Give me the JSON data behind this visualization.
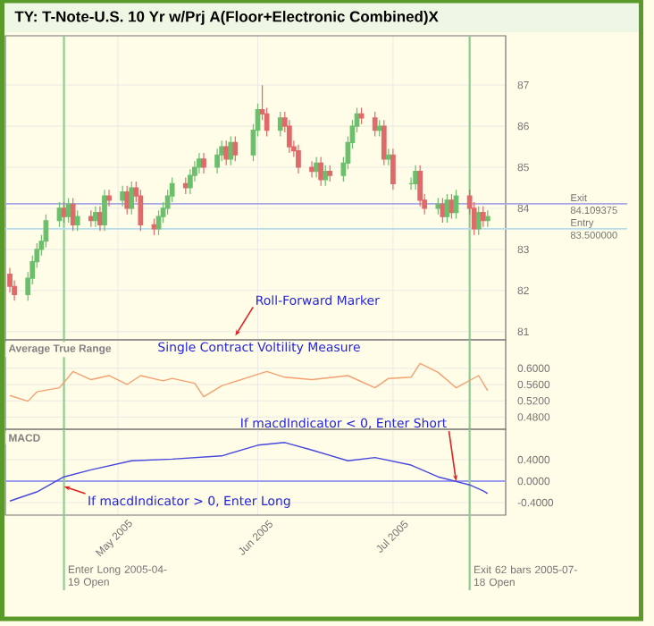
{
  "chart_data": [
    {
      "type": "candlestick",
      "title": "TY: T-Note-U.S. 10 Yr w/Prj A(Floor+Electronic Combined)X",
      "x": [
        "2005-04-07",
        "2005-04-08",
        "2005-04-11",
        "2005-04-12",
        "2005-04-13",
        "2005-04-14",
        "2005-04-15",
        "2005-04-18",
        "2005-04-19",
        "2005-04-20",
        "2005-04-21",
        "2005-04-22",
        "2005-04-25",
        "2005-04-26",
        "2005-04-27",
        "2005-04-28",
        "2005-04-29",
        "2005-05-02",
        "2005-05-03",
        "2005-05-04",
        "2005-05-05",
        "2005-05-06",
        "2005-05-09",
        "2005-05-10",
        "2005-05-11",
        "2005-05-12",
        "2005-05-13",
        "2005-05-16",
        "2005-05-17",
        "2005-05-18",
        "2005-05-19",
        "2005-05-20",
        "2005-05-23",
        "2005-05-24",
        "2005-05-25",
        "2005-05-26",
        "2005-05-27",
        "2005-05-31",
        "2005-06-01",
        "2005-06-02",
        "2005-06-03",
        "2005-06-06",
        "2005-06-07",
        "2005-06-08",
        "2005-06-09",
        "2005-06-10",
        "2005-06-13",
        "2005-06-14",
        "2005-06-15",
        "2005-06-16",
        "2005-06-17",
        "2005-06-20",
        "2005-06-21",
        "2005-06-22",
        "2005-06-23",
        "2005-06-24",
        "2005-06-27",
        "2005-06-28",
        "2005-06-29",
        "2005-06-30",
        "2005-07-01",
        "2005-07-05",
        "2005-07-06",
        "2005-07-07",
        "2005-07-08",
        "2005-07-11",
        "2005-07-12",
        "2005-07-13",
        "2005-07-14",
        "2005-07-15",
        "2005-07-18",
        "2005-07-19",
        "2005-07-20",
        "2005-07-21",
        "2005-07-22"
      ],
      "ohlc": [
        [
          82.4,
          82.55,
          81.95,
          82.1
        ],
        [
          82.1,
          82.25,
          81.75,
          81.9
        ],
        [
          81.9,
          82.45,
          81.75,
          82.3
        ],
        [
          82.3,
          82.85,
          82.15,
          82.7
        ],
        [
          82.7,
          83.15,
          82.55,
          83.0
        ],
        [
          83.0,
          83.35,
          82.85,
          83.2
        ],
        [
          83.2,
          83.85,
          83.05,
          83.7
        ],
        [
          83.7,
          84.15,
          83.55,
          84.0
        ],
        [
          84.0,
          84.15,
          83.65,
          83.8
        ],
        [
          83.8,
          84.25,
          83.65,
          84.1
        ],
        [
          84.1,
          84.25,
          83.45,
          83.6
        ],
        [
          83.6,
          83.95,
          83.45,
          83.8
        ],
        [
          83.8,
          83.95,
          83.55,
          83.7
        ],
        [
          83.7,
          84.05,
          83.55,
          83.9
        ],
        [
          83.9,
          84.05,
          83.45,
          83.6
        ],
        [
          83.6,
          84.45,
          83.45,
          84.3
        ],
        [
          84.3,
          84.45,
          84.05,
          84.2
        ],
        [
          84.2,
          84.55,
          84.05,
          84.4
        ],
        [
          84.4,
          84.55,
          83.85,
          84.0
        ],
        [
          84.0,
          84.65,
          83.85,
          84.5
        ],
        [
          84.5,
          84.65,
          84.15,
          84.3
        ],
        [
          84.3,
          84.45,
          83.45,
          83.6
        ],
        [
          83.6,
          83.75,
          83.35,
          83.5
        ],
        [
          83.5,
          83.95,
          83.35,
          83.8
        ],
        [
          83.8,
          84.15,
          83.65,
          84.0
        ],
        [
          84.0,
          84.45,
          83.85,
          84.3
        ],
        [
          84.3,
          84.75,
          84.15,
          84.6
        ],
        [
          84.6,
          84.75,
          84.35,
          84.5
        ],
        [
          84.5,
          84.95,
          84.35,
          84.8
        ],
        [
          84.8,
          85.15,
          84.65,
          85.0
        ],
        [
          85.0,
          85.35,
          84.85,
          85.2
        ],
        [
          85.2,
          85.35,
          84.85,
          85.0
        ],
        [
          85.0,
          85.45,
          84.85,
          85.3
        ],
        [
          85.3,
          85.65,
          85.15,
          85.5
        ],
        [
          85.5,
          85.65,
          85.05,
          85.2
        ],
        [
          85.2,
          85.75,
          85.05,
          85.6
        ],
        [
          85.6,
          85.75,
          85.15,
          85.3
        ],
        [
          85.3,
          86.05,
          85.15,
          85.9
        ],
        [
          85.9,
          86.55,
          85.75,
          86.4
        ],
        [
          86.4,
          87.0,
          86.15,
          86.3
        ],
        [
          86.3,
          86.45,
          85.75,
          85.9
        ],
        [
          85.9,
          86.35,
          85.75,
          86.2
        ],
        [
          86.2,
          86.35,
          85.85,
          86.0
        ],
        [
          86.0,
          86.15,
          85.35,
          85.5
        ],
        [
          85.5,
          85.65,
          85.25,
          85.4
        ],
        [
          85.4,
          85.55,
          84.85,
          85.0
        ],
        [
          85.0,
          85.15,
          84.75,
          84.9
        ],
        [
          84.9,
          85.25,
          84.75,
          85.1
        ],
        [
          85.1,
          85.25,
          84.55,
          84.7
        ],
        [
          84.7,
          85.05,
          84.55,
          84.9
        ],
        [
          84.9,
          85.05,
          84.65,
          84.8
        ],
        [
          84.8,
          85.25,
          84.65,
          85.1
        ],
        [
          85.1,
          85.75,
          84.95,
          85.6
        ],
        [
          85.6,
          86.15,
          85.45,
          86.0
        ],
        [
          86.0,
          86.45,
          85.85,
          86.3
        ],
        [
          86.3,
          86.45,
          86.05,
          86.2
        ],
        [
          86.2,
          86.35,
          85.75,
          85.9
        ],
        [
          85.9,
          86.15,
          85.75,
          86.0
        ],
        [
          86.0,
          86.15,
          85.05,
          85.2
        ],
        [
          85.2,
          85.45,
          85.05,
          85.3
        ],
        [
          85.3,
          85.45,
          84.45,
          84.6
        ],
        [
          84.6,
          84.75,
          84.45,
          84.6
        ],
        [
          84.6,
          85.05,
          84.45,
          84.9
        ],
        [
          84.9,
          85.05,
          84.05,
          84.2
        ],
        [
          84.2,
          84.35,
          83.85,
          84.0
        ],
        [
          84.0,
          84.25,
          83.85,
          84.1
        ],
        [
          84.1,
          84.25,
          83.65,
          83.8
        ],
        [
          83.8,
          84.35,
          83.65,
          84.2
        ],
        [
          84.2,
          84.35,
          83.75,
          83.9
        ],
        [
          83.9,
          84.45,
          83.75,
          84.3
        ],
        [
          84.3,
          84.45,
          83.85,
          84.0
        ],
        [
          84.0,
          84.15,
          83.35,
          83.5
        ],
        [
          83.5,
          84.05,
          83.35,
          83.9
        ],
        [
          83.9,
          84.05,
          83.55,
          83.7
        ],
        [
          83.7,
          83.95,
          83.55,
          83.8
        ]
      ],
      "colors": [
        "#e06a6a",
        "#e06a6a",
        "#6cbf6c",
        "#6cbf6c",
        "#6cbf6c",
        "#6cbf6c",
        "#6cbf6c",
        "#6cbf6c",
        "#e06a6a",
        "#6cbf6c",
        "#e06a6a",
        "#6cbf6c",
        "#e06a6a",
        "#6cbf6c",
        "#e06a6a",
        "#6cbf6c",
        "#e06a6a",
        "#6cbf6c",
        "#e06a6a",
        "#6cbf6c",
        "#e06a6a",
        "#e06a6a",
        "#e06a6a",
        "#6cbf6c",
        "#6cbf6c",
        "#6cbf6c",
        "#6cbf6c",
        "#e06a6a",
        "#6cbf6c",
        "#6cbf6c",
        "#6cbf6c",
        "#e06a6a",
        "#6cbf6c",
        "#6cbf6c",
        "#e06a6a",
        "#6cbf6c",
        "#e06a6a",
        "#6cbf6c",
        "#6cbf6c",
        "#e06a6a",
        "#e06a6a",
        "#6cbf6c",
        "#e06a6a",
        "#e06a6a",
        "#e06a6a",
        "#e06a6a",
        "#e06a6a",
        "#6cbf6c",
        "#e06a6a",
        "#6cbf6c",
        "#e06a6a",
        "#6cbf6c",
        "#6cbf6c",
        "#6cbf6c",
        "#6cbf6c",
        "#e06a6a",
        "#e06a6a",
        "#6cbf6c",
        "#e06a6a",
        "#6cbf6c",
        "#e06a6a",
        "#6cbf6c",
        "#6cbf6c",
        "#e06a6a",
        "#e06a6a",
        "#6cbf6c",
        "#e06a6a",
        "#6cbf6c",
        "#e06a6a",
        "#6cbf6c",
        "#e06a6a",
        "#e06a6a",
        "#6cbf6c",
        "#e06a6a",
        "#6cbf6c"
      ],
      "xlim": [
        "2005-04-06",
        "2005-07-26"
      ],
      "xticks": [
        {
          "value": "2005-05-01",
          "label": null
        },
        {
          "value": "2005-06-01",
          "label": null
        },
        {
          "value": "2005-07-01",
          "label": null
        }
      ],
      "ylim": [
        80.8,
        88.2
      ],
      "yticks": [
        81,
        82,
        83,
        84,
        85,
        86,
        87
      ],
      "grid": true,
      "tick_labels": "y",
      "ref_lines": [
        {
          "axis": "x",
          "value": "2005-04-19",
          "color": "#8fcc8f"
        },
        {
          "axis": "x",
          "value": "2005-07-18",
          "color": "#8fcc8f"
        },
        {
          "axis": "y",
          "value": 84.109375,
          "label": "Exit 84.109375",
          "color": "#a8a8e8"
        },
        {
          "axis": "y",
          "value": 83.5,
          "label": "Entry 83.500000",
          "color": "#b8dcec"
        }
      ],
      "annotations": [
        {
          "text": "Roll-Forward Marker",
          "x": "2005-05-27",
          "y": 80.9
        }
      ]
    },
    {
      "type": "line",
      "title": "Average True Range",
      "series": [
        {
          "color": "#f4a070",
          "x": [
            "2005-04-07",
            "2005-04-11",
            "2005-04-13",
            "2005-04-18",
            "2005-04-21",
            "2005-04-25",
            "2005-04-29",
            "2005-05-03",
            "2005-05-06",
            "2005-05-11",
            "2005-05-13",
            "2005-05-18",
            "2005-05-20",
            "2005-05-24",
            "2005-06-03",
            "2005-06-07",
            "2005-06-13",
            "2005-06-21",
            "2005-06-27",
            "2005-06-30",
            "2005-07-05",
            "2005-07-07",
            "2005-07-11",
            "2005-07-15",
            "2005-07-20",
            "2005-07-22"
          ],
          "values": [
            0.533,
            0.519,
            0.542,
            0.552,
            0.592,
            0.572,
            0.582,
            0.56,
            0.582,
            0.569,
            0.575,
            0.563,
            0.53,
            0.557,
            0.592,
            0.578,
            0.572,
            0.582,
            0.552,
            0.575,
            0.578,
            0.612,
            0.59,
            0.552,
            0.582,
            0.545
          ]
        }
      ],
      "xlim": [
        "2005-04-06",
        "2005-07-26"
      ],
      "xticks": [
        {
          "value": "2005-05-01",
          "label": null
        },
        {
          "value": "2005-06-01",
          "label": null
        },
        {
          "value": "2005-07-01",
          "label": null
        }
      ],
      "ylim": [
        0.45,
        0.67
      ],
      "yticks": [
        {
          "value": 0.48,
          "label": "0.4800"
        },
        {
          "value": 0.52,
          "label": "0.5200"
        },
        {
          "value": 0.56,
          "label": "0.5600"
        },
        {
          "value": 0.6,
          "label": "0.6000"
        }
      ],
      "grid": true,
      "tick_labels": "y",
      "ref_lines": [
        {
          "axis": "x",
          "value": "2005-04-19",
          "color": "#8fcc8f"
        },
        {
          "axis": "x",
          "value": "2005-07-18",
          "color": "#8fcc8f"
        }
      ],
      "annotations": [
        "Single Contract Voltility Measure"
      ]
    },
    {
      "type": "line",
      "title": "MACD",
      "series": [
        {
          "color": "#4848dc",
          "x": [
            "2005-04-07",
            "2005-04-13",
            "2005-04-19",
            "2005-04-25",
            "2005-05-04",
            "2005-05-13",
            "2005-05-24",
            "2005-06-01",
            "2005-06-07",
            "2005-06-13",
            "2005-06-21",
            "2005-06-27",
            "2005-07-05",
            "2005-07-11",
            "2005-07-18",
            "2005-07-21",
            "2005-07-22"
          ],
          "values": [
            -0.37,
            -0.2,
            0.08,
            0.21,
            0.38,
            0.41,
            0.47,
            0.67,
            0.72,
            0.58,
            0.38,
            0.44,
            0.3,
            0.08,
            -0.07,
            -0.18,
            -0.23
          ]
        }
      ],
      "xlim": [
        "2005-04-06",
        "2005-07-26"
      ],
      "xticks": [
        {
          "value": "2005-05-01",
          "label": "May 2005"
        },
        {
          "value": "2005-06-01",
          "label": "Jun 2005"
        },
        {
          "value": "2005-07-01",
          "label": "Jul 2005"
        }
      ],
      "ylim": [
        -0.633,
        0.967
      ],
      "yticks": [
        {
          "value": -0.4,
          "label": "-0.4000"
        },
        {
          "value": 0,
          "label": "0.0000"
        },
        {
          "value": 0.4,
          "label": "0.4000"
        }
      ],
      "grid": true,
      "ref_lines": [
        {
          "axis": "y",
          "value": 0,
          "color": "#9a9aee"
        },
        {
          "axis": "x",
          "value": "2005-04-19",
          "label": "Enter Long 2005-04-19 Open",
          "color": "#8fcc8f"
        },
        {
          "axis": "x",
          "value": "2005-07-18",
          "label": "Exit 62 bars 2005-07-18 Open",
          "color": "#8fcc8f"
        }
      ],
      "annotations": [
        {
          "text": "If macdIndicator < 0, Enter Short",
          "x": "2005-07-15",
          "y": 0
        },
        {
          "text": "If macdIndicator > 0, Enter Long",
          "x": "2005-04-19",
          "y": -0.1
        }
      ]
    }
  ]
}
